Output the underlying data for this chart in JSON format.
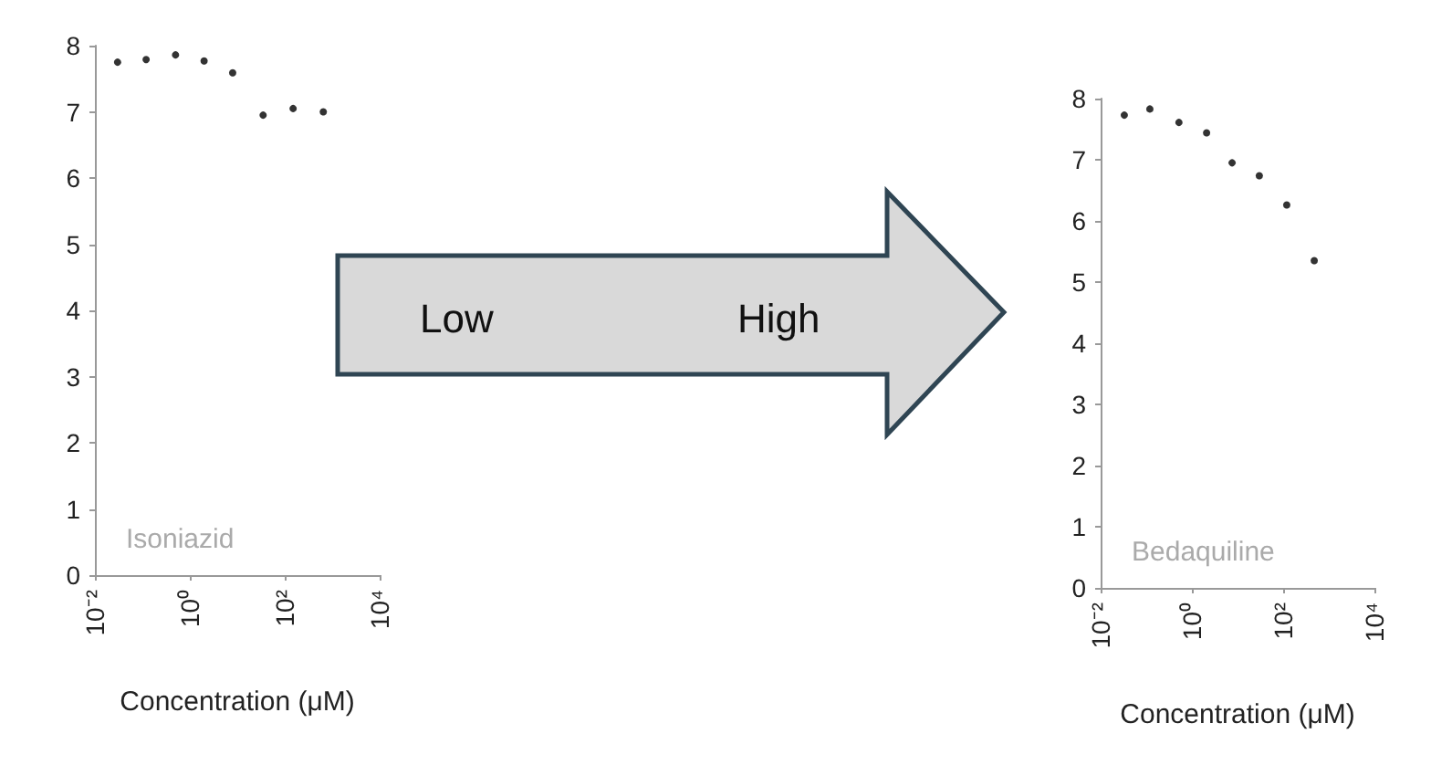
{
  "chart_data": [
    {
      "type": "scatter",
      "title": "Isoniazid",
      "xlabel": "Concentration (μM)",
      "annotations": [
        "Low",
        "High"
      ],
      "x": [
        0.03,
        0.12,
        0.5,
        2,
        8,
        35,
        150,
        650
      ],
      "series": [
        {
          "color": "#000000",
          "values": [
            7.75,
            7.79,
            7.86,
            7.77,
            7.59,
            6.95,
            7.05,
            7.0
          ]
        }
      ],
      "log": "x",
      "xlim": [
        0.01,
        10000
      ],
      "xticks": [
        {
          "value": 0.01,
          "label": "10⁻²"
        },
        {
          "value": 1,
          "label": "10⁰"
        },
        {
          "value": 100,
          "label": "10²"
        },
        {
          "value": 10000,
          "label": "10⁴"
        }
      ],
      "ylim": [
        0,
        8
      ],
      "yticks": [
        0,
        1,
        2,
        3,
        4,
        5,
        6,
        7,
        8
      ],
      "marker": "circle"
    },
    {
      "type": "scatter",
      "title": "Bedaquiline",
      "xlabel": "Concentration (μM)",
      "x": [
        0.033,
        0.12,
        0.52,
        2.1,
        7.6,
        30,
        120,
        480
      ],
      "series": [
        {
          "color": "#000000",
          "values": [
            7.73,
            7.83,
            7.61,
            7.44,
            6.95,
            6.74,
            6.26,
            5.35
          ]
        }
      ],
      "log": "x",
      "xlim": [
        0.01,
        10000
      ],
      "xticks": [
        {
          "value": 0.01,
          "label": "10⁻²"
        },
        {
          "value": 1,
          "label": "10⁰"
        },
        {
          "value": 100,
          "label": "10²"
        },
        {
          "value": 10000,
          "label": "10⁴"
        }
      ],
      "ylim": [
        0,
        8
      ],
      "yticks": [
        0,
        1,
        2,
        3,
        4,
        5,
        6,
        7,
        8
      ],
      "marker": "circle"
    }
  ]
}
